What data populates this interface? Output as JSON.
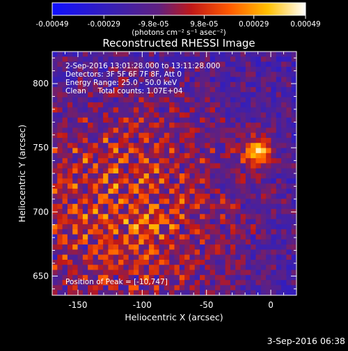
{
  "colorbar": {
    "ticks": [
      "-0.00049",
      "-0.00029",
      "-9.8e-05",
      "9.8e-05",
      "0.00029",
      "0.00049"
    ],
    "unit_label": "(photons cm⁻² s⁻¹ asec⁻²)",
    "range": [
      -0.00049,
      0.00049
    ]
  },
  "chart_data": {
    "type": "heatmap",
    "title": "Reconstructed RHESSI Image",
    "xlabel": "Heliocentric X (arcsec)",
    "ylabel": "Heliocentric Y (arcsec)",
    "xlim": [
      -170,
      20
    ],
    "ylim": [
      635,
      825
    ],
    "xticks": [
      -150,
      -100,
      -50,
      0
    ],
    "yticks": [
      650,
      700,
      750,
      800
    ],
    "colormap": "hot-blue (blue → purple → red → orange → yellow → white)",
    "peak_position": [
      -10,
      747
    ],
    "annotations": [
      "2-Sep-2016 13:01:28.000 to 13:11:28.000",
      "Detectors: 3F 5F 6F 7F 8F, Att 0",
      "Energy Range: 25.0 - 50.0 keV",
      "Clean     Total counts: 1.07E+04"
    ],
    "peak_label": "Position of Peak = [-10,747]"
  },
  "footer": {
    "timestamp": "3-Sep-2016 06:38"
  }
}
